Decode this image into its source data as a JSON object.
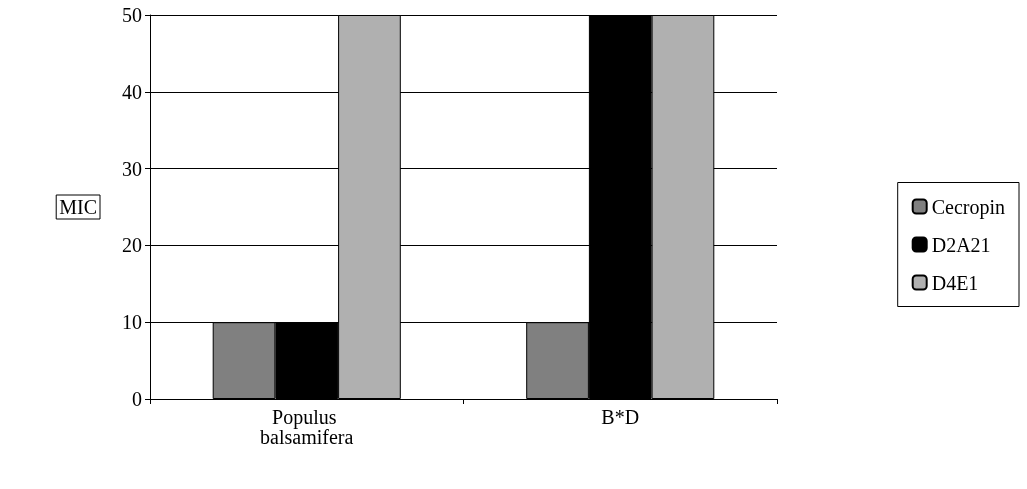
{
  "chart_data": {
    "type": "bar",
    "ylabel": "MIC",
    "categories": [
      "Populus balsamifera",
      "B*D"
    ],
    "series": [
      {
        "name": "Cecropin",
        "color": "#808080",
        "values": [
          10,
          10
        ]
      },
      {
        "name": "D2A21",
        "color": "#000000",
        "values": [
          10,
          50
        ]
      },
      {
        "name": "D4E1",
        "color": "#b0b0b0",
        "values": [
          50,
          50
        ]
      }
    ],
    "ylim": [
      0,
      50
    ],
    "yticks": [
      0,
      10,
      20,
      30,
      40,
      50
    ],
    "grid": "y",
    "legend": "right"
  }
}
